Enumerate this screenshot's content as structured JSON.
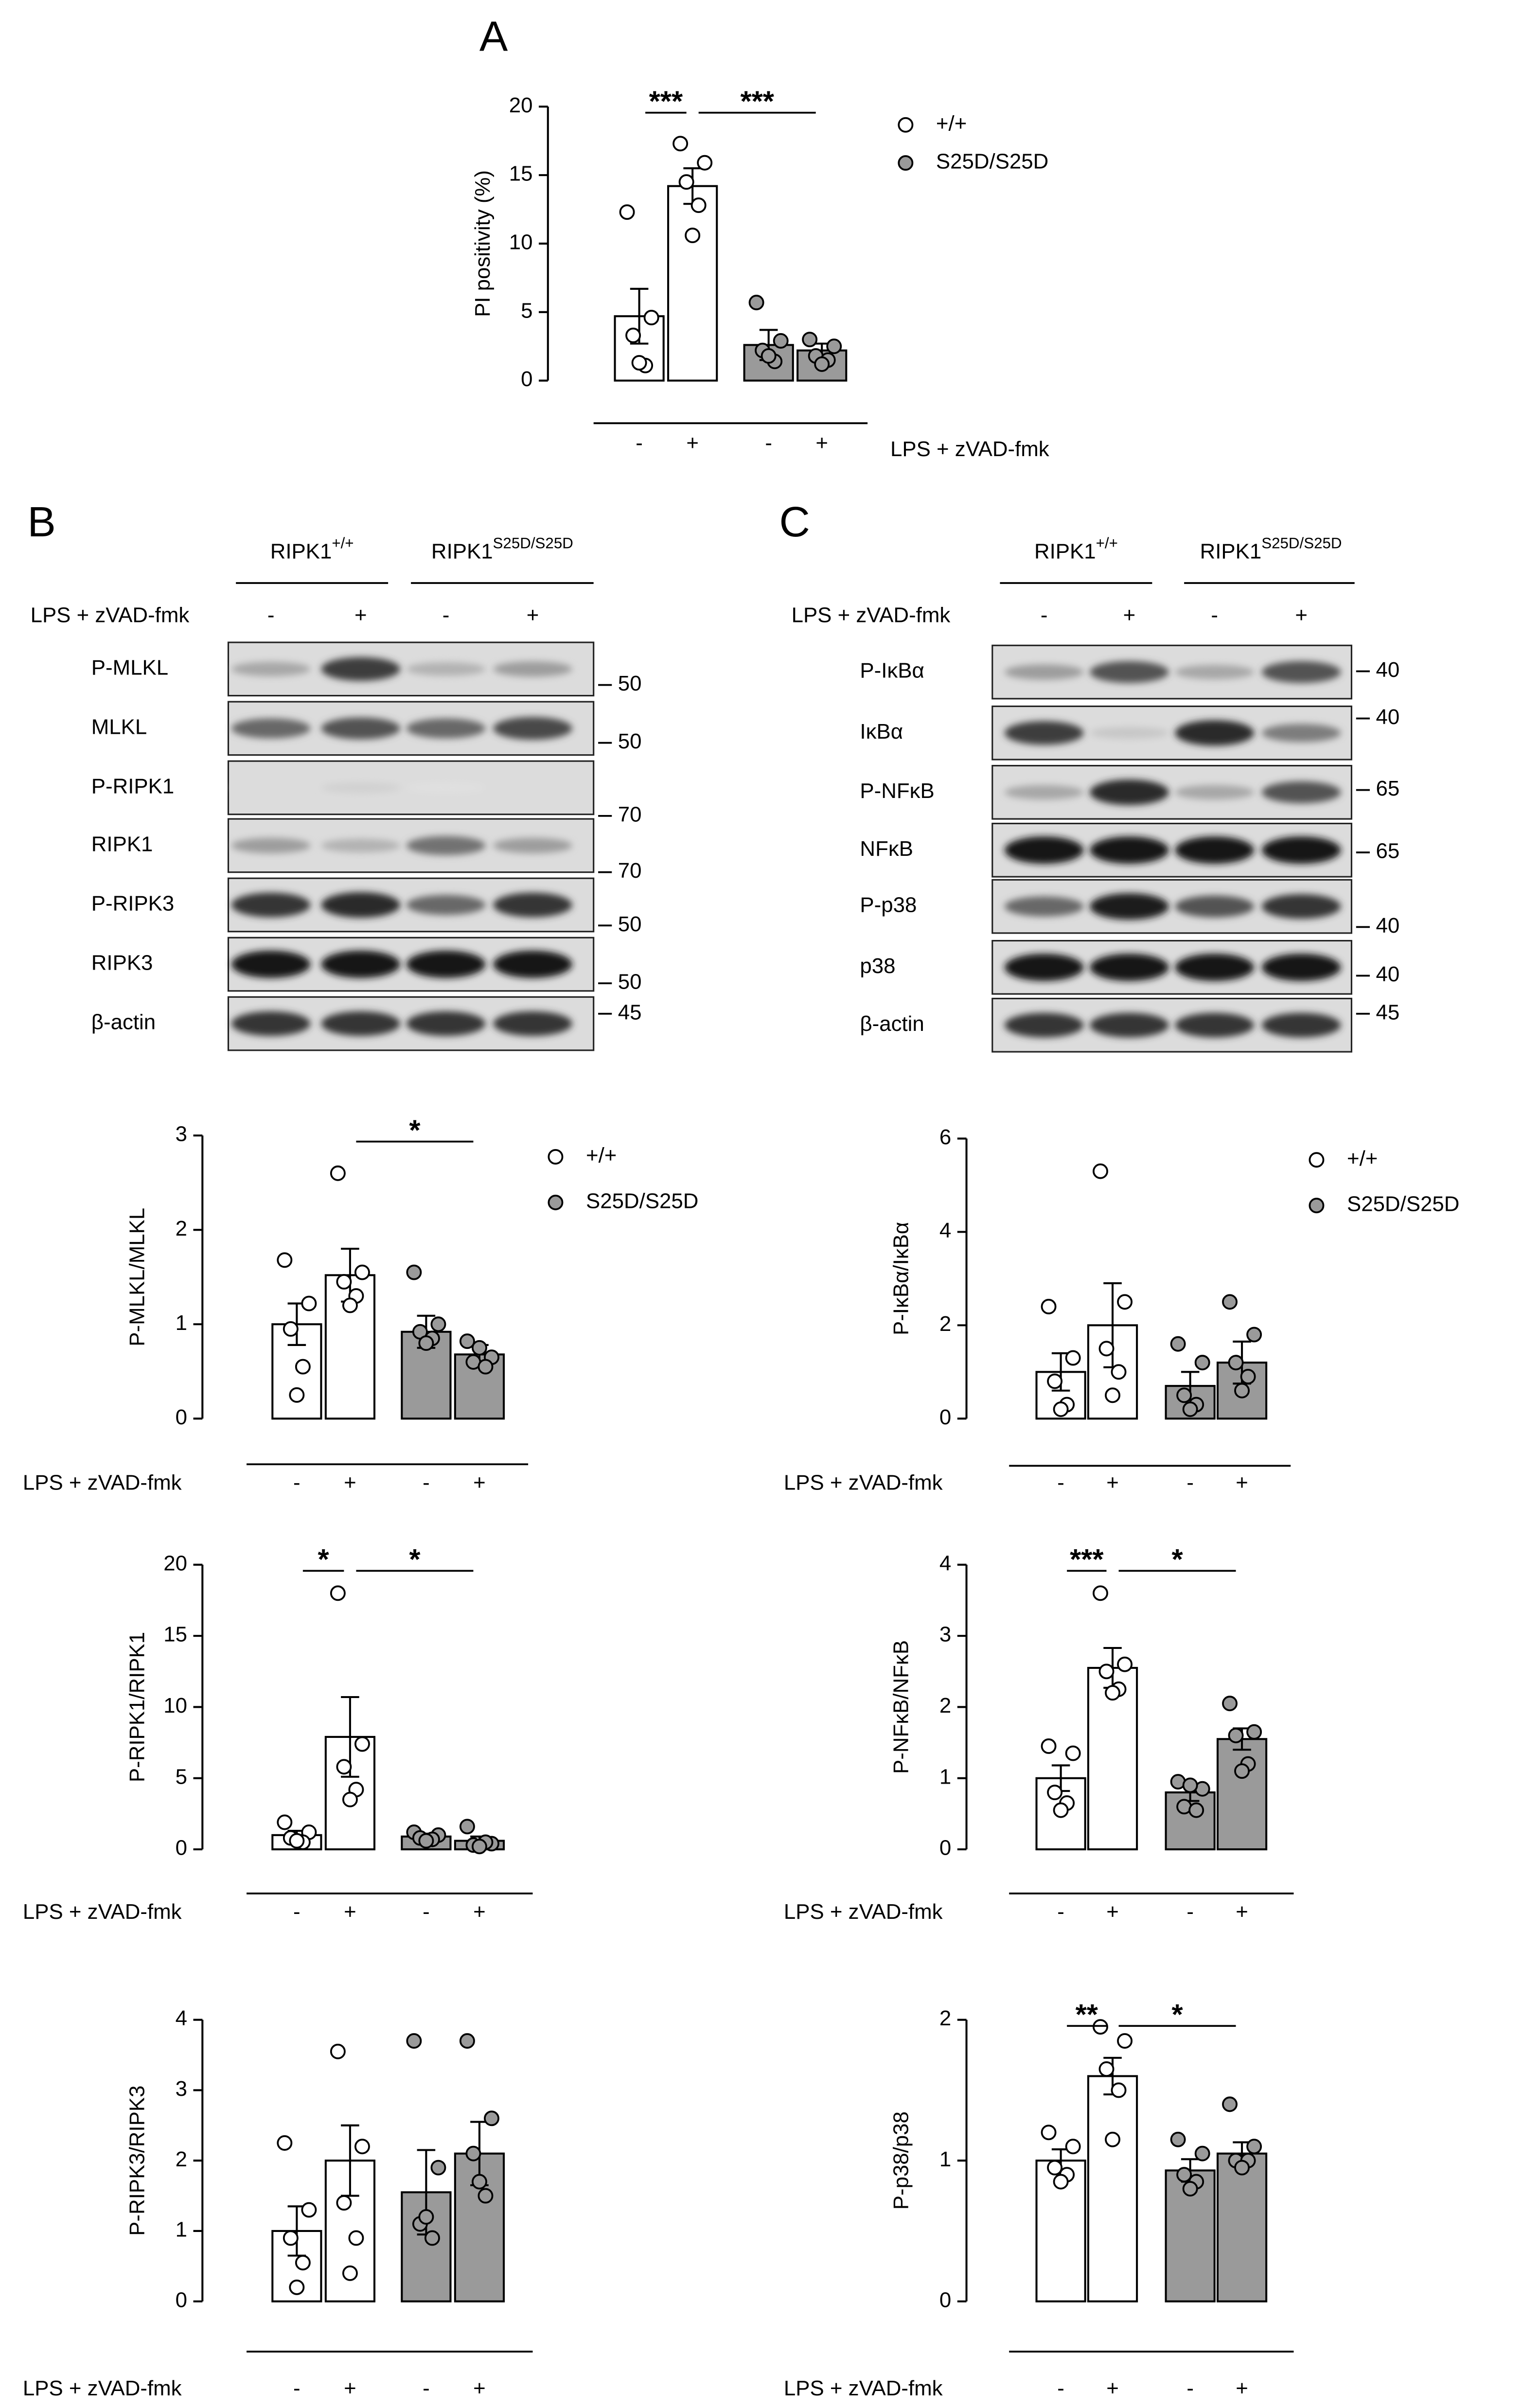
{
  "panel_labels": [
    "A",
    "B",
    "C"
  ],
  "blots": [
    {
      "headers": [
        {
          "base": "RIPK1",
          "sup": "+/+"
        },
        {
          "base": "RIPK1",
          "sup": "S25D/S25D"
        }
      ],
      "treatment": "LPS + zVAD-fmk",
      "signs": [
        "-",
        "+",
        "-",
        "+"
      ],
      "rows": [
        {
          "label": "P-MLKL",
          "marker": 50
        },
        {
          "label": "MLKL",
          "marker": 50
        },
        {
          "label": "P-RIPK1",
          "marker": 70
        },
        {
          "label": "RIPK1",
          "marker": 70
        },
        {
          "label": "P-RIPK3",
          "marker": 50
        },
        {
          "label": "RIPK3",
          "marker": 50
        },
        {
          "label": "β-actin",
          "marker": 45
        }
      ]
    },
    {
      "headers": [
        {
          "base": "RIPK1",
          "sup": "+/+"
        },
        {
          "base": "RIPK1",
          "sup": "S25D/S25D"
        }
      ],
      "treatment": "LPS + zVAD-fmk",
      "signs": [
        "-",
        "+",
        "-",
        "+"
      ],
      "rows": [
        {
          "label": "P-IκBα",
          "marker": 40
        },
        {
          "label": "IκBα",
          "marker": 40
        },
        {
          "label": "P-NFκB",
          "marker": 65
        },
        {
          "label": "NFκB",
          "marker": 65
        },
        {
          "label": "P-p38",
          "marker": 40
        },
        {
          "label": "p38",
          "marker": 40
        },
        {
          "label": "β-actin",
          "marker": 45
        }
      ]
    }
  ],
  "chart_data": [
    {
      "type": "bar",
      "ylabel": "PI positivity (%)",
      "xlabel": "LPS + zVAD-fmk",
      "categories": [
        "-",
        "+",
        "-",
        "+"
      ],
      "values": [
        4.7,
        14.2,
        2.6,
        2.2
      ],
      "errors": [
        2.0,
        1.3,
        1.1,
        0.5
      ],
      "points": [
        [
          12.3,
          4.6,
          3.3,
          1.1,
          1.3
        ],
        [
          17.3,
          15.9,
          14.5,
          12.8,
          10.6
        ],
        [
          5.7,
          2.9,
          2.2,
          1.4,
          1.8
        ],
        [
          3.0,
          2.5,
          1.8,
          1.5,
          1.2
        ]
      ],
      "colors": [
        "#ffffff",
        "#ffffff",
        "#9a9a9a",
        "#9a9a9a"
      ],
      "ylim": [
        0,
        20
      ],
      "yticks": [
        0,
        5,
        10,
        15,
        20
      ],
      "significance": [
        {
          "label": "***",
          "from": 0,
          "to": 1
        },
        {
          "label": "***",
          "from": 1,
          "to": 3
        }
      ],
      "legend": [
        {
          "name": "+/+",
          "color": "#ffffff"
        },
        {
          "name": "S25D/S25D",
          "color": "#9a9a9a"
        }
      ]
    },
    {
      "type": "bar",
      "ylabel": "P-MLKL/MLKL",
      "xlabel": "LPS + zVAD-fmk",
      "categories": [
        "-",
        "+",
        "-",
        "+"
      ],
      "values": [
        1.0,
        1.52,
        0.92,
        0.68
      ],
      "errors": [
        0.22,
        0.28,
        0.17,
        0.1
      ],
      "points": [
        [
          1.68,
          1.22,
          0.95,
          0.55,
          0.25
        ],
        [
          2.6,
          1.55,
          1.45,
          1.3,
          1.2
        ],
        [
          1.55,
          1.0,
          0.92,
          0.85,
          0.8
        ],
        [
          0.82,
          0.65,
          0.6,
          0.55,
          0.75
        ]
      ],
      "colors": [
        "#ffffff",
        "#ffffff",
        "#9a9a9a",
        "#9a9a9a"
      ],
      "ylim": [
        0,
        3
      ],
      "yticks": [
        0,
        1,
        2,
        3
      ],
      "significance": [
        {
          "label": "*",
          "from": 1,
          "to": 3
        }
      ],
      "legend": [
        {
          "name": "+/+",
          "color": "#ffffff"
        },
        {
          "name": "S25D/S25D",
          "color": "#9a9a9a"
        }
      ]
    },
    {
      "type": "bar",
      "ylabel": "P-RIPK1/RIPK1",
      "xlabel": "LPS + zVAD-fmk",
      "categories": [
        "-",
        "+",
        "-",
        "+"
      ],
      "values": [
        1.0,
        7.9,
        0.9,
        0.6
      ],
      "errors": [
        0.3,
        2.8,
        0.2,
        0.3
      ],
      "points": [
        [
          1.9,
          1.2,
          0.8,
          0.5,
          0.6
        ],
        [
          18,
          7.4,
          5.8,
          4.2,
          3.5
        ],
        [
          1.2,
          1.0,
          0.8,
          0.7,
          0.6
        ],
        [
          1.6,
          0.4,
          0.3,
          0.5,
          0.2
        ]
      ],
      "colors": [
        "#ffffff",
        "#ffffff",
        "#9a9a9a",
        "#9a9a9a"
      ],
      "ylim": [
        0,
        20
      ],
      "yticks": [
        0,
        5,
        10,
        15,
        20
      ],
      "significance": [
        {
          "label": "*",
          "from": 0,
          "to": 1
        },
        {
          "label": "*",
          "from": 1,
          "to": 3
        }
      ]
    },
    {
      "type": "bar",
      "ylabel": "P-RIPK3/RIPK3",
      "xlabel": "LPS + zVAD-fmk",
      "categories": [
        "-",
        "+",
        "-",
        "+"
      ],
      "values": [
        1.0,
        2.0,
        1.55,
        2.1
      ],
      "errors": [
        0.35,
        0.5,
        0.6,
        0.45
      ],
      "points": [
        [
          2.25,
          1.3,
          0.9,
          0.55,
          0.2
        ],
        [
          3.55,
          2.2,
          1.4,
          0.9,
          0.4
        ],
        [
          3.7,
          1.9,
          1.1,
          0.9,
          1.2
        ],
        [
          3.7,
          2.6,
          2.1,
          1.5,
          1.7
        ]
      ],
      "colors": [
        "#ffffff",
        "#ffffff",
        "#9a9a9a",
        "#9a9a9a"
      ],
      "ylim": [
        0,
        4
      ],
      "yticks": [
        0,
        1,
        2,
        3,
        4
      ]
    },
    {
      "type": "bar",
      "ylabel": "P-IκBα/IκBα",
      "xlabel": "LPS + zVAD-fmk",
      "categories": [
        "-",
        "+",
        "-",
        "+"
      ],
      "values": [
        1.0,
        2.0,
        0.7,
        1.2
      ],
      "errors": [
        0.4,
        0.9,
        0.3,
        0.45
      ],
      "points": [
        [
          2.4,
          1.3,
          0.8,
          0.3,
          0.2
        ],
        [
          5.3,
          2.5,
          1.5,
          1.0,
          0.5
        ],
        [
          1.6,
          1.2,
          0.5,
          0.3,
          0.2
        ],
        [
          2.5,
          1.8,
          1.2,
          0.9,
          0.6
        ]
      ],
      "colors": [
        "#ffffff",
        "#ffffff",
        "#9a9a9a",
        "#9a9a9a"
      ],
      "ylim": [
        0,
        6
      ],
      "yticks": [
        0,
        2,
        4,
        6
      ],
      "legend": [
        {
          "name": "+/+",
          "color": "#ffffff"
        },
        {
          "name": "S25D/S25D",
          "color": "#9a9a9a"
        }
      ]
    },
    {
      "type": "bar",
      "ylabel": "P-NFκB/NFκB",
      "xlabel": "LPS + zVAD-fmk",
      "categories": [
        "-",
        "+",
        "-",
        "+"
      ],
      "values": [
        1.0,
        2.55,
        0.8,
        1.55
      ],
      "errors": [
        0.18,
        0.28,
        0.12,
        0.15
      ],
      "points": [
        [
          1.45,
          1.35,
          0.8,
          0.65,
          0.55
        ],
        [
          3.6,
          2.6,
          2.5,
          2.25,
          2.2
        ],
        [
          0.95,
          0.85,
          0.6,
          0.55,
          0.9
        ],
        [
          2.05,
          1.65,
          1.6,
          1.2,
          1.1
        ]
      ],
      "colors": [
        "#ffffff",
        "#ffffff",
        "#9a9a9a",
        "#9a9a9a"
      ],
      "ylim": [
        0,
        4
      ],
      "yticks": [
        0,
        1,
        2,
        3,
        4
      ],
      "significance": [
        {
          "label": "***",
          "from": 0,
          "to": 1
        },
        {
          "label": "*",
          "from": 1,
          "to": 3
        }
      ]
    },
    {
      "type": "bar",
      "ylabel": "P-p38/p38",
      "xlabel": "LPS + zVAD-fmk",
      "categories": [
        "-",
        "+",
        "-",
        "+"
      ],
      "values": [
        1.0,
        1.6,
        0.93,
        1.05
      ],
      "errors": [
        0.08,
        0.13,
        0.08,
        0.08
      ],
      "points": [
        [
          1.2,
          1.1,
          0.95,
          0.9,
          0.85
        ],
        [
          1.95,
          1.85,
          1.65,
          1.5,
          1.15
        ],
        [
          1.15,
          1.05,
          0.9,
          0.85,
          0.8
        ],
        [
          1.4,
          1.1,
          1.0,
          1.0,
          0.95
        ]
      ],
      "colors": [
        "#ffffff",
        "#ffffff",
        "#9a9a9a",
        "#9a9a9a"
      ],
      "ylim": [
        0,
        2
      ],
      "yticks": [
        0,
        1,
        2
      ],
      "significance": [
        {
          "label": "**",
          "from": 0,
          "to": 1
        },
        {
          "label": "*",
          "from": 1,
          "to": 3
        }
      ]
    }
  ]
}
